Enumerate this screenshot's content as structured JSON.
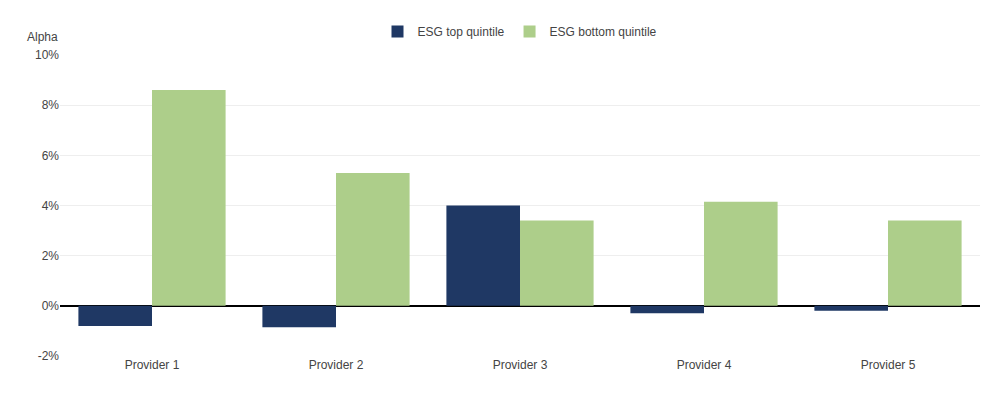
{
  "chart_data": {
    "type": "bar",
    "ylabel": "Alpha",
    "categories": [
      "Provider 1",
      "Provider 2",
      "Provider 3",
      "Provider 4",
      "Provider 5"
    ],
    "series": [
      {
        "name": "ESG top quintile",
        "color": "#1F3864",
        "values": [
          -0.8,
          -0.85,
          4.0,
          -0.3,
          -0.2
        ]
      },
      {
        "name": "ESG bottom quintile",
        "color": "#ADCE8A",
        "values": [
          8.6,
          5.3,
          3.4,
          4.15,
          3.4
        ]
      }
    ],
    "ylim": [
      -2,
      10
    ],
    "yticks": [
      {
        "value": -2,
        "label": "-2%"
      },
      {
        "value": 0,
        "label": "0%"
      },
      {
        "value": 2,
        "label": "2%"
      },
      {
        "value": 4,
        "label": "4%"
      },
      {
        "value": 6,
        "label": "6%"
      },
      {
        "value": 8,
        "label": "8%"
      },
      {
        "value": 10,
        "label": "10%"
      }
    ],
    "grid": true,
    "legend": "top"
  }
}
